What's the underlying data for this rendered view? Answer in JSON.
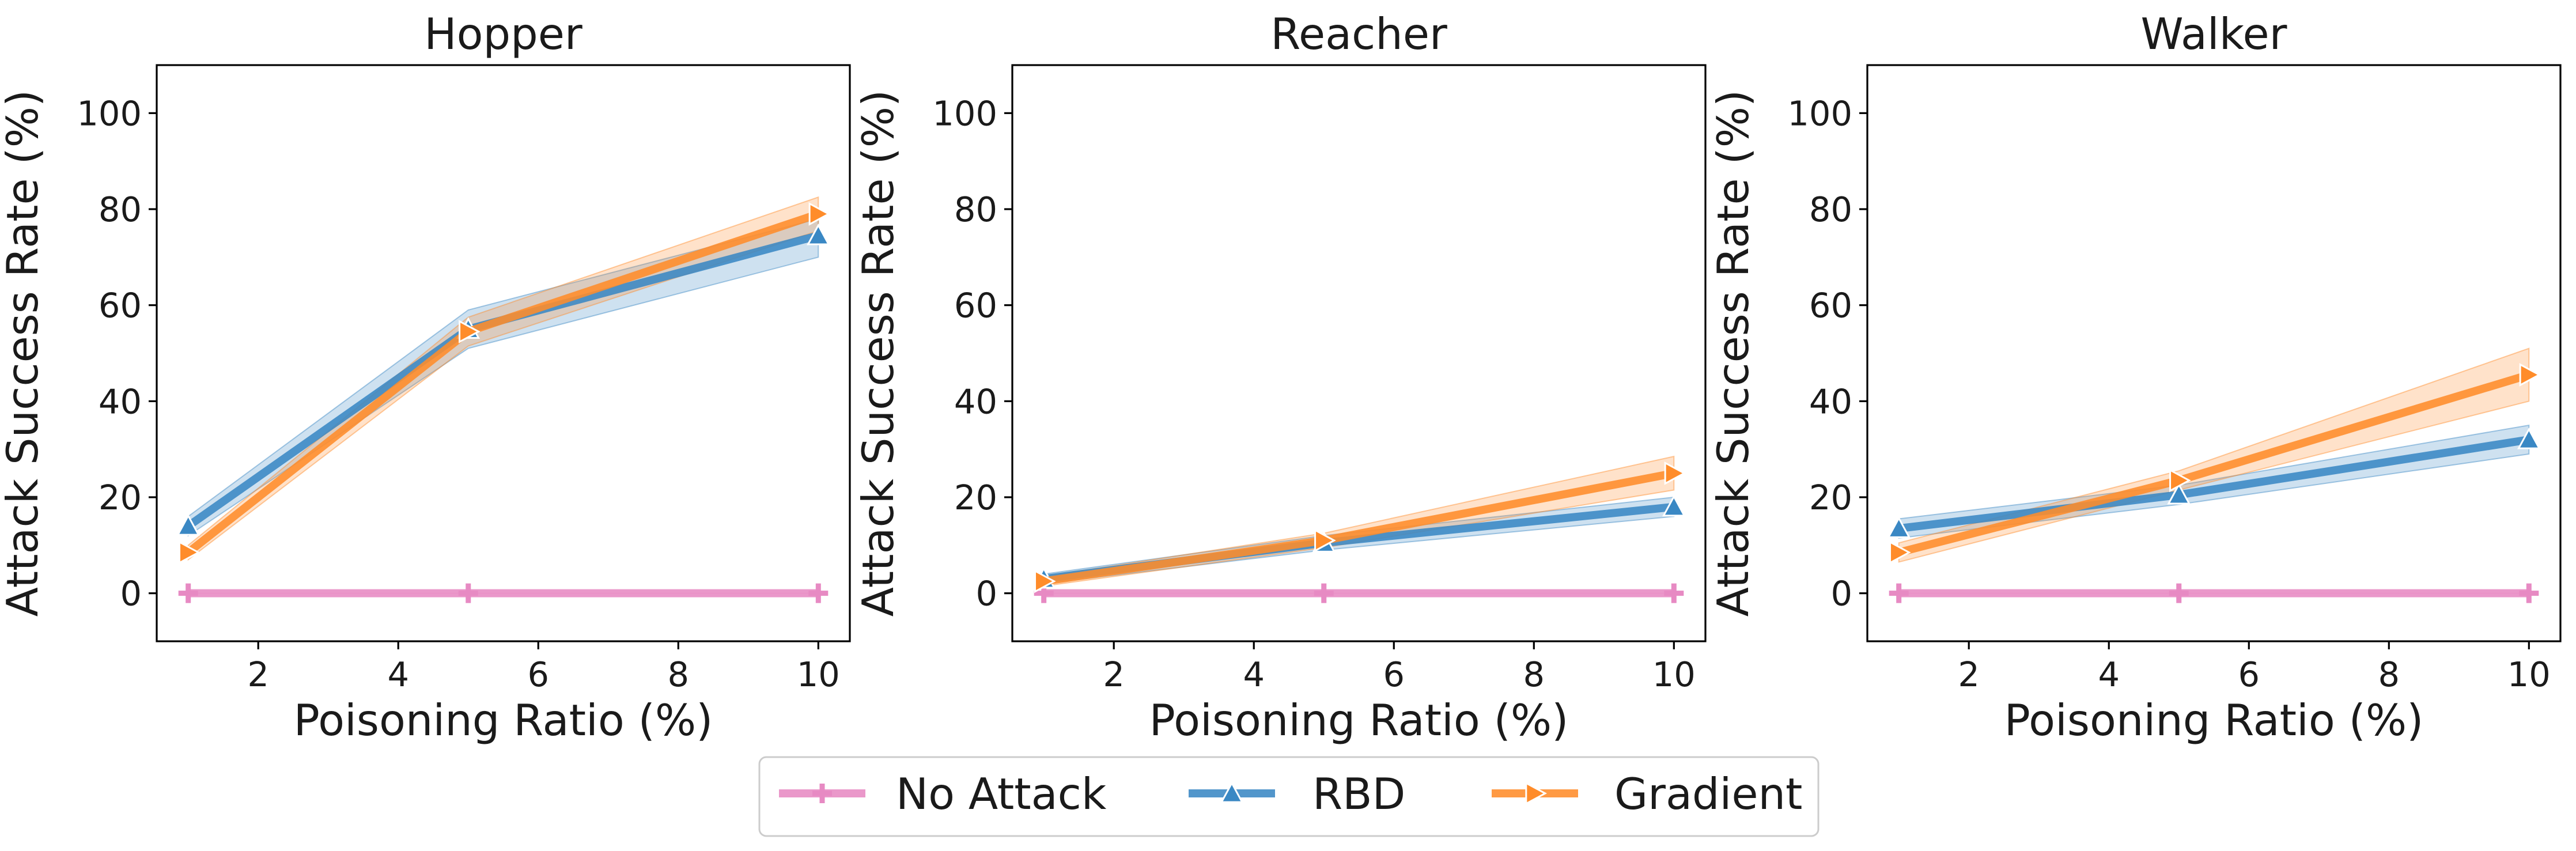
{
  "chart_data": [
    {
      "type": "line",
      "title": "Hopper",
      "xlabel": "Poisoning Ratio (%)",
      "ylabel": "Attack Success Rate (%)",
      "xlim": [
        0.55,
        10.45
      ],
      "ylim": [
        -10,
        110
      ],
      "x_ticks": [
        2,
        4,
        6,
        8,
        10
      ],
      "y_ticks": [
        0,
        20,
        40,
        60,
        80,
        100
      ],
      "x": [
        1,
        5,
        10
      ],
      "series": [
        {
          "name": "No Attack",
          "values": [
            0,
            0,
            0
          ],
          "band": [
            [
              0,
              0
            ],
            [
              0,
              0
            ],
            [
              0,
              0
            ]
          ]
        },
        {
          "name": "RBD",
          "values": [
            14,
            55,
            74.5
          ],
          "band": [
            [
              12,
              16
            ],
            [
              51,
              59
            ],
            [
              70,
              78
            ]
          ]
        },
        {
          "name": "Gradient",
          "values": [
            8.5,
            54.5,
            79
          ],
          "band": [
            [
              7,
              10
            ],
            [
              51.5,
              57.5
            ],
            [
              75.5,
              82.5
            ]
          ]
        }
      ]
    },
    {
      "type": "line",
      "title": "Reacher",
      "xlabel": "Poisoning Ratio (%)",
      "ylabel": "Attack Success Rate (%)",
      "xlim": [
        0.55,
        10.45
      ],
      "ylim": [
        -10,
        110
      ],
      "x_ticks": [
        2,
        4,
        6,
        8,
        10
      ],
      "y_ticks": [
        0,
        20,
        40,
        60,
        80,
        100
      ],
      "x": [
        1,
        5,
        10
      ],
      "series": [
        {
          "name": "No Attack",
          "values": [
            0,
            0,
            0
          ],
          "band": [
            [
              0,
              0
            ],
            [
              0,
              0
            ],
            [
              0,
              0
            ]
          ]
        },
        {
          "name": "RBD",
          "values": [
            3,
            10.5,
            18
          ],
          "band": [
            [
              2,
              4
            ],
            [
              9,
              12
            ],
            [
              16,
              20
            ]
          ]
        },
        {
          "name": "Gradient",
          "values": [
            2.5,
            11,
            25
          ],
          "band": [
            [
              1.5,
              3.5
            ],
            [
              9.5,
              12.5
            ],
            [
              21.5,
              28.5
            ]
          ]
        }
      ]
    },
    {
      "type": "line",
      "title": "Walker",
      "xlabel": "Poisoning Ratio (%)",
      "ylabel": "Attack Success Rate (%)",
      "xlim": [
        0.55,
        10.45
      ],
      "ylim": [
        -10,
        110
      ],
      "x_ticks": [
        2,
        4,
        6,
        8,
        10
      ],
      "y_ticks": [
        0,
        20,
        40,
        60,
        80,
        100
      ],
      "x": [
        1,
        5,
        10
      ],
      "series": [
        {
          "name": "No Attack",
          "values": [
            0,
            0,
            0
          ],
          "band": [
            [
              0,
              0
            ],
            [
              0,
              0
            ],
            [
              0,
              0
            ]
          ]
        },
        {
          "name": "RBD",
          "values": [
            13.5,
            20.5,
            32
          ],
          "band": [
            [
              11.5,
              15.5
            ],
            [
              18.5,
              22.5
            ],
            [
              29,
              35
            ]
          ]
        },
        {
          "name": "Gradient",
          "values": [
            8.5,
            23.5,
            45.5
          ],
          "band": [
            [
              6.5,
              10.5
            ],
            [
              21.5,
              25.5
            ],
            [
              40,
              51
            ]
          ]
        }
      ]
    }
  ],
  "legend": {
    "position": "bottom-center",
    "items": [
      {
        "name": "No Attack",
        "color": "#e78ac3",
        "marker": "plus"
      },
      {
        "name": "RBD",
        "color": "#3a88c4",
        "marker": "triangle-up"
      },
      {
        "name": "Gradient",
        "color": "#ff8c2a",
        "marker": "triangle-right"
      }
    ]
  },
  "colors": {
    "No Attack": "#e78ac3",
    "RBD": "#3a88c4",
    "Gradient": "#ff8c2a"
  }
}
